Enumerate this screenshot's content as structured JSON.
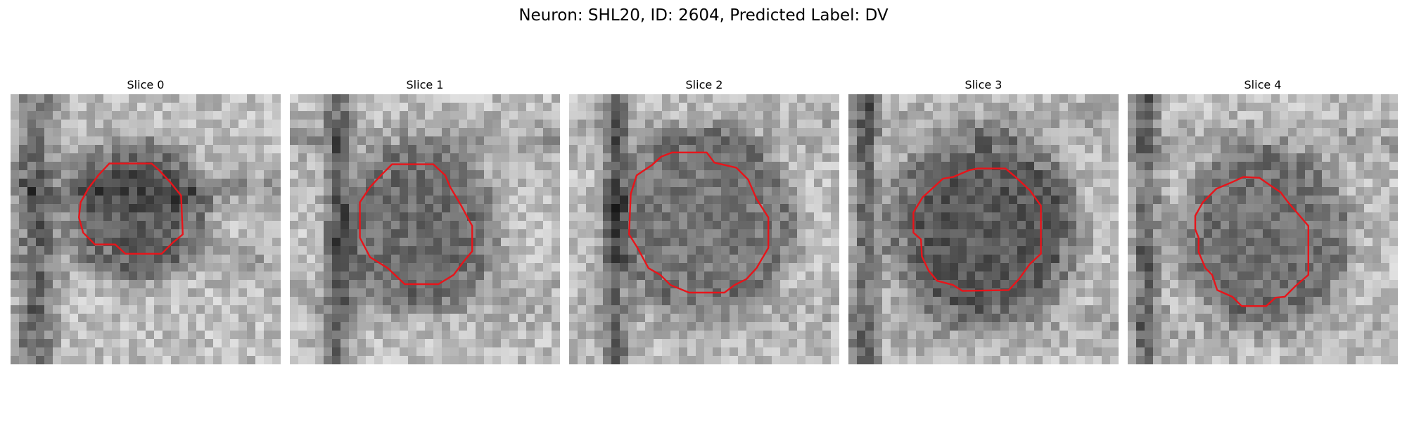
{
  "figure": {
    "title": "Neuron: SHL20, ID: 2604, Predicted Label: DV"
  },
  "panels": [
    {
      "title": "Slice 0",
      "contour_color": "#e8141a"
    },
    {
      "title": "Slice 1",
      "contour_color": "#e8141a"
    },
    {
      "title": "Slice 2",
      "contour_color": "#e8141a"
    },
    {
      "title": "Slice 3",
      "contour_color": "#e8141a"
    },
    {
      "title": "Slice 4",
      "contour_color": "#e8141a"
    }
  ]
}
